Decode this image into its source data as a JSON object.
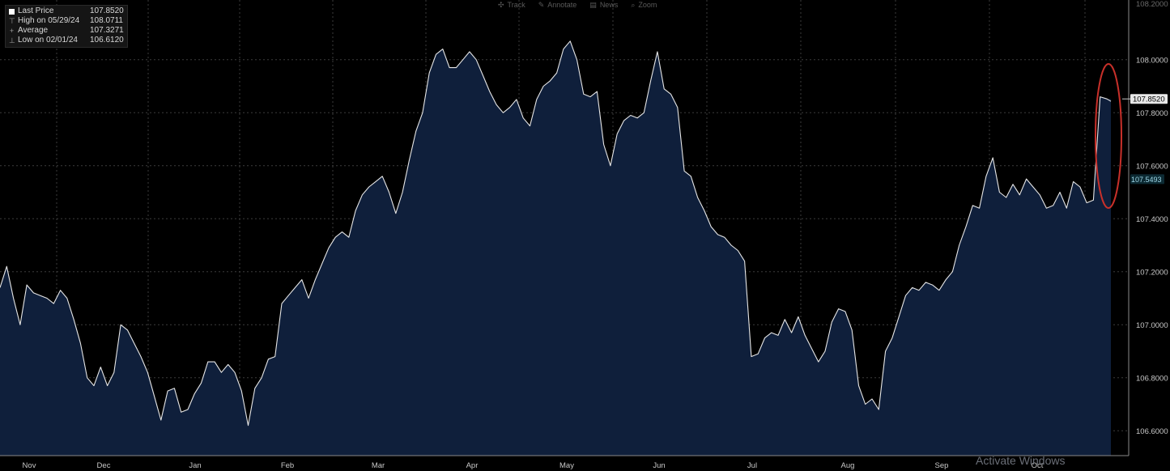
{
  "toolbar": {
    "items": [
      {
        "icon": "track-icon",
        "label": "Track"
      },
      {
        "icon": "annotate-icon",
        "label": "Annotate"
      },
      {
        "icon": "news-icon",
        "label": "News"
      },
      {
        "icon": "zoom-icon",
        "label": "Zoom"
      }
    ]
  },
  "legend": {
    "last_label": "Last Price",
    "last_value": "107.8520",
    "high_label": "High on 05/29/24",
    "high_value": "108.0711",
    "avg_label": "Average",
    "avg_value": "107.3271",
    "low_label": "Low on 02/01/24",
    "low_value": "106.6120"
  },
  "watermark": "Activate Windows",
  "colors": {
    "background": "#000000",
    "area_fill": "#0f1f3b",
    "line": "#e6e6e6",
    "grid": "#3c3c3c",
    "annotation": "#c8302a",
    "last_tag_bg": "#e8e8e8",
    "prev_tag_text": "#9fd6e6"
  },
  "chart_data": {
    "type": "area",
    "title": "",
    "xlabel": "",
    "ylabel": "",
    "ylim": [
      106.5,
      108.2
    ],
    "x_tick_labels": [
      "Nov",
      "Dec",
      "Jan",
      "Feb",
      "Mar",
      "Apr",
      "May",
      "Jun",
      "Jul",
      "Aug",
      "Sep",
      "Oct"
    ],
    "y_tick_labels": [
      "108.0000",
      "107.8000",
      "107.6000",
      "107.4000",
      "107.2000",
      "107.0000",
      "106.8000",
      "106.6000"
    ],
    "y_ticks": [
      108.0,
      107.8,
      107.6,
      107.4,
      107.2,
      107.0,
      106.8,
      106.6
    ],
    "top_tick_label": "108.2000",
    "last_value_tag": "107.8520",
    "secondary_tag": "107.5493",
    "secondary_tag_value": 107.5493,
    "grid": true,
    "annotation": "circle around final spike",
    "series": [
      {
        "values": [
          107.14,
          107.22,
          107.1,
          107.0,
          107.15,
          107.12,
          107.11,
          107.1,
          107.08,
          107.13,
          107.1,
          107.02,
          106.93,
          106.8,
          106.77,
          106.84,
          106.77,
          106.82,
          107.0,
          106.98,
          106.93,
          106.88,
          106.82,
          106.73,
          106.64,
          106.75,
          106.76,
          106.67,
          106.68,
          106.74,
          106.78,
          106.86,
          106.86,
          106.82,
          106.85,
          106.82,
          106.75,
          106.62,
          106.76,
          106.8,
          106.87,
          106.88,
          107.08,
          107.11,
          107.14,
          107.17,
          107.1,
          107.17,
          107.23,
          107.29,
          107.33,
          107.35,
          107.33,
          107.43,
          107.49,
          107.52,
          107.54,
          107.56,
          107.5,
          107.42,
          107.5,
          107.62,
          107.73,
          107.8,
          107.95,
          108.02,
          108.04,
          107.97,
          107.97,
          108.0,
          108.03,
          108.0,
          107.94,
          107.88,
          107.83,
          107.8,
          107.82,
          107.85,
          107.78,
          107.75,
          107.85,
          107.9,
          107.92,
          107.95,
          108.04,
          108.07,
          108.0,
          107.87,
          107.86,
          107.88,
          107.68,
          107.6,
          107.72,
          107.77,
          107.79,
          107.78,
          107.8,
          107.92,
          108.03,
          107.89,
          107.87,
          107.82,
          107.58,
          107.56,
          107.48,
          107.43,
          107.37,
          107.34,
          107.33,
          107.3,
          107.28,
          107.24,
          106.88,
          106.89,
          106.95,
          106.97,
          106.96,
          107.02,
          106.97,
          107.03,
          106.96,
          106.91,
          106.86,
          106.9,
          107.01,
          107.06,
          107.05,
          106.98,
          106.77,
          106.7,
          106.72,
          106.68,
          106.9,
          106.95,
          107.03,
          107.11,
          107.14,
          107.13,
          107.16,
          107.15,
          107.13,
          107.17,
          107.2,
          107.3,
          107.37,
          107.45,
          107.44,
          107.56,
          107.63,
          107.5,
          107.48,
          107.53,
          107.49,
          107.55,
          107.52,
          107.49,
          107.44,
          107.45,
          107.5,
          107.44,
          107.54,
          107.52,
          107.46,
          107.47,
          107.86,
          107.852
        ]
      }
    ]
  }
}
